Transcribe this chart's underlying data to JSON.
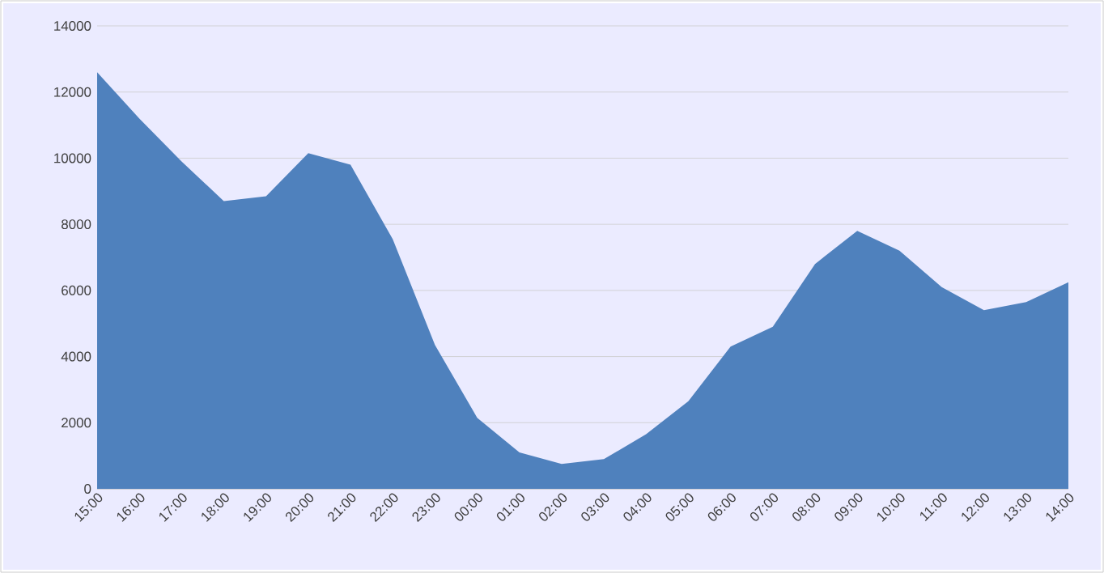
{
  "chart_data": {
    "type": "area",
    "categories": [
      "15:00",
      "16:00",
      "17:00",
      "18:00",
      "19:00",
      "20:00",
      "21:00",
      "22:00",
      "23:00",
      "00:00",
      "01:00",
      "02:00",
      "03:00",
      "04:00",
      "05:00",
      "06:00",
      "07:00",
      "08:00",
      "09:00",
      "10:00",
      "11:00",
      "12:00",
      "13:00",
      "14:00"
    ],
    "values": [
      12600,
      11200,
      9900,
      8700,
      8850,
      10150,
      9800,
      7550,
      4350,
      2150,
      1100,
      750,
      900,
      1650,
      2650,
      4300,
      4900,
      6800,
      7800,
      7200,
      6100,
      5400,
      5650,
      6250
    ],
    "color": "#4f81bd",
    "ylim": [
      0,
      14000
    ],
    "yticks": [
      0,
      2000,
      4000,
      6000,
      8000,
      10000,
      12000,
      14000
    ],
    "grid": "y"
  }
}
